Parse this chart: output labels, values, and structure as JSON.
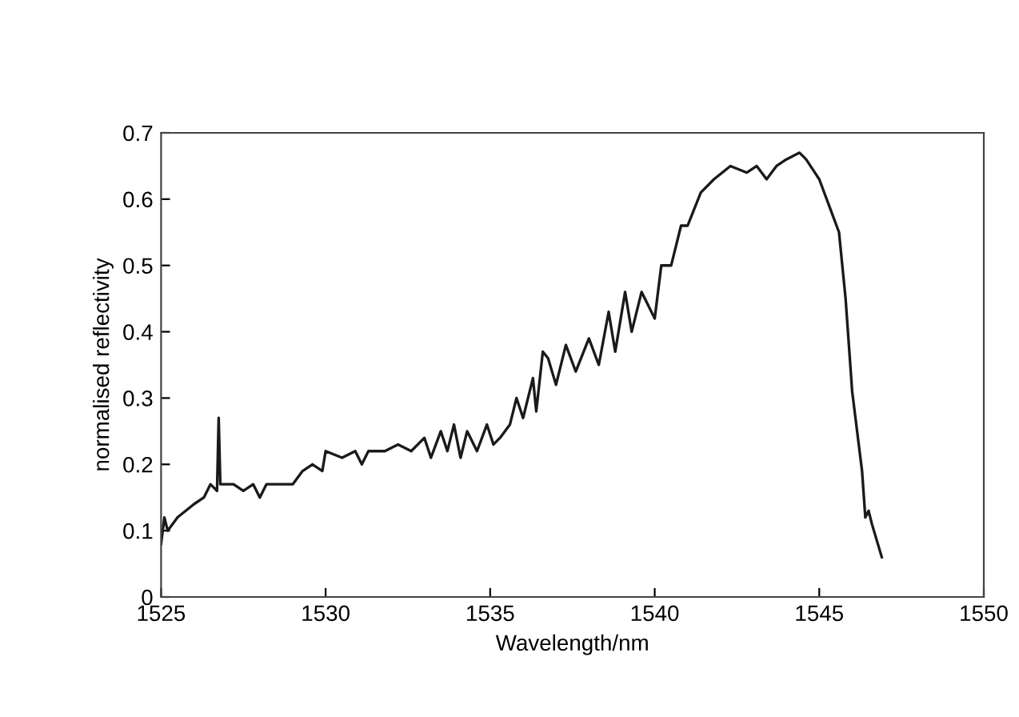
{
  "chart_data": {
    "type": "line",
    "xlabel": "Wavelength/nm",
    "ylabel": "normalised reflectivity",
    "xlim": [
      1525,
      1550
    ],
    "xticks": [
      1525,
      1530,
      1535,
      1540,
      1545,
      1550
    ],
    "ylim": [
      0,
      0.7
    ],
    "yticks": [
      0,
      0.1,
      0.2,
      0.3,
      0.4,
      0.5,
      0.6,
      0.7
    ],
    "grid": false,
    "legend": false,
    "marker": "none",
    "line_style": "solid",
    "series": [
      {
        "color": "#1a1a1a",
        "x": [
          1525.0,
          1525.1,
          1525.2,
          1525.5,
          1526.0,
          1526.3,
          1526.5,
          1526.7,
          1526.75,
          1526.8,
          1527.2,
          1527.5,
          1527.8,
          1528.0,
          1528.2,
          1528.6,
          1529.0,
          1529.3,
          1529.6,
          1529.9,
          1530.0,
          1530.5,
          1530.9,
          1531.1,
          1531.3,
          1531.8,
          1532.2,
          1532.6,
          1533.0,
          1533.2,
          1533.5,
          1533.7,
          1533.9,
          1534.1,
          1534.3,
          1534.6,
          1534.9,
          1535.1,
          1535.3,
          1535.6,
          1535.8,
          1536.0,
          1536.3,
          1536.4,
          1536.6,
          1536.76,
          1537.0,
          1537.3,
          1537.6,
          1538.0,
          1538.3,
          1538.6,
          1538.8,
          1539.1,
          1539.3,
          1539.6,
          1540.0,
          1540.2,
          1540.5,
          1540.8,
          1541.0,
          1541.4,
          1541.8,
          1542.3,
          1542.8,
          1543.1,
          1543.4,
          1543.7,
          1544.0,
          1544.4,
          1544.6,
          1545.0,
          1545.3,
          1545.6,
          1545.8,
          1546.0,
          1546.3,
          1546.4,
          1546.5,
          1546.6,
          1546.9
        ],
        "values": [
          0.08,
          0.12,
          0.1,
          0.12,
          0.14,
          0.15,
          0.17,
          0.16,
          0.27,
          0.17,
          0.17,
          0.16,
          0.17,
          0.15,
          0.17,
          0.17,
          0.17,
          0.19,
          0.2,
          0.19,
          0.22,
          0.21,
          0.22,
          0.2,
          0.22,
          0.22,
          0.23,
          0.22,
          0.24,
          0.21,
          0.25,
          0.22,
          0.26,
          0.21,
          0.25,
          0.22,
          0.26,
          0.23,
          0.24,
          0.26,
          0.3,
          0.27,
          0.33,
          0.28,
          0.37,
          0.36,
          0.32,
          0.38,
          0.34,
          0.39,
          0.35,
          0.43,
          0.37,
          0.46,
          0.4,
          0.46,
          0.42,
          0.5,
          0.5,
          0.56,
          0.56,
          0.61,
          0.63,
          0.65,
          0.64,
          0.65,
          0.63,
          0.65,
          0.66,
          0.67,
          0.66,
          0.63,
          0.59,
          0.55,
          0.45,
          0.31,
          0.19,
          0.12,
          0.13,
          0.11,
          0.06
        ]
      }
    ]
  }
}
